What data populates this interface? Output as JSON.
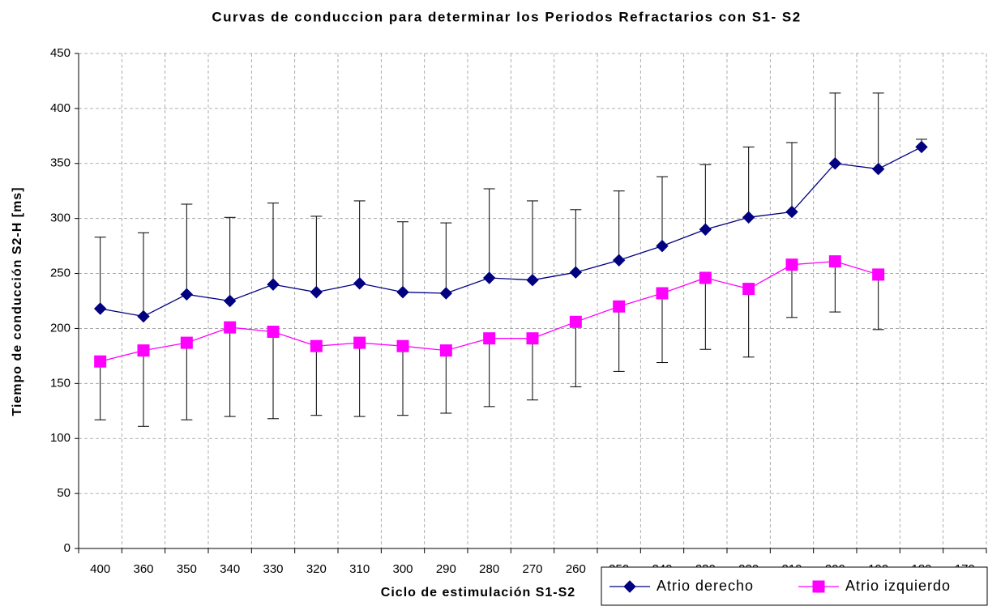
{
  "chart_data": {
    "type": "line",
    "title": "Curvas de conduccion para determinar los Periodos Refractarios con S1- S2",
    "x_label": "Ciclo de estimulación  S1-S2",
    "y_label": "Tiempo de conducción S2-H  [ms]",
    "categories": [
      "400",
      "360",
      "350",
      "340",
      "330",
      "320",
      "310",
      "300",
      "290",
      "280",
      "270",
      "260",
      "250",
      "240",
      "230",
      "220",
      "210",
      "200",
      "190",
      "180",
      "170"
    ],
    "ylim": [
      0,
      450
    ],
    "yticks": [
      0,
      50,
      100,
      150,
      200,
      250,
      300,
      350,
      400,
      450
    ],
    "grid": true,
    "legend": "bottom-right",
    "series": [
      {
        "name": "Atrio derecho",
        "color": "#000080",
        "marker": "diamond",
        "error_direction": "plus",
        "values": [
          218,
          211,
          231,
          225,
          240,
          233,
          241,
          233,
          232,
          246,
          244,
          251,
          262,
          275,
          290,
          301,
          306,
          350,
          345,
          365,
          null
        ],
        "errors": [
          65,
          76,
          82,
          76,
          74,
          69,
          75,
          64,
          64,
          81,
          72,
          57,
          63,
          63,
          59,
          64,
          63,
          64,
          69,
          7,
          null
        ]
      },
      {
        "name": "Atrio izquierdo",
        "color": "#ff00ff",
        "marker": "square",
        "error_direction": "minus",
        "values": [
          170,
          180,
          187,
          201,
          197,
          184,
          187,
          184,
          180,
          191,
          191,
          206,
          220,
          232,
          246,
          236,
          258,
          261,
          249,
          null,
          null
        ],
        "errors": [
          53,
          69,
          70,
          81,
          79,
          63,
          67,
          63,
          57,
          62,
          56,
          59,
          59,
          63,
          65,
          62,
          48,
          46,
          50,
          null,
          null
        ]
      }
    ]
  }
}
